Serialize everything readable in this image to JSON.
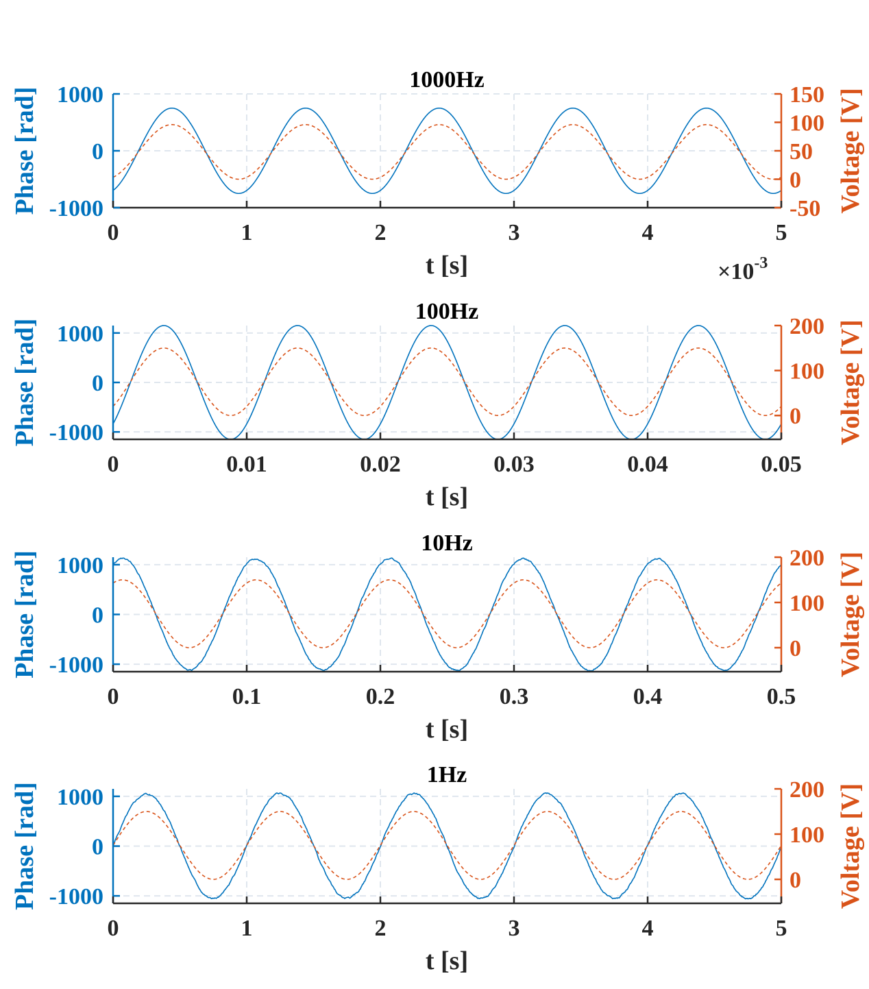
{
  "colors": {
    "phase": "#0072BD",
    "voltage": "#D95319",
    "axis": "#262626",
    "grid": "#dfe6ee"
  },
  "chart_data": [
    {
      "type": "line",
      "title": "1000Hz",
      "xlabel": "t [s]",
      "xlim": [
        0,
        0.005
      ],
      "x_exponent_label": "×10",
      "x_exponent": "-3",
      "xticks": [
        0,
        0.001,
        0.002,
        0.003,
        0.004,
        0.005
      ],
      "xticklabels": [
        "0",
        "1",
        "2",
        "3",
        "4",
        "5"
      ],
      "y_left": {
        "label": "Phase [rad]",
        "lim": [
          -1000,
          1000
        ],
        "ticks": [
          -1000,
          0,
          1000
        ],
        "ticklabels": [
          "-1000",
          "0",
          "1000"
        ],
        "grid": [
          -1000,
          0,
          1000
        ]
      },
      "y_right": {
        "label": "Voltage [V]",
        "lim": [
          -50,
          150
        ],
        "ticks": [
          -50,
          0,
          50,
          100,
          150
        ],
        "ticklabels": [
          "-50",
          "0",
          "50",
          "100",
          "150"
        ]
      },
      "series": [
        {
          "axis": "left",
          "style": "solid",
          "amplitude": 750,
          "offset": 0,
          "frequency": 1000,
          "peak_time": 0.00044,
          "noise": 0
        },
        {
          "axis": "right",
          "style": "dashed",
          "amplitude": 48,
          "offset": 48,
          "frequency": 1000,
          "peak_time": 0.00044,
          "noise": 0
        }
      ]
    },
    {
      "type": "line",
      "title": "100Hz",
      "xlabel": "t [s]",
      "xlim": [
        0,
        0.05
      ],
      "xticks": [
        0,
        0.01,
        0.02,
        0.03,
        0.04,
        0.05
      ],
      "xticklabels": [
        "0",
        "0.01",
        "0.02",
        "0.03",
        "0.04",
        "0.05"
      ],
      "y_left": {
        "label": "Phase [rad]",
        "lim": [
          -1150,
          1150
        ],
        "ticks": [
          -1000,
          0,
          1000
        ],
        "ticklabels": [
          "-1000",
          "0",
          "1000"
        ],
        "grid": [
          -1000,
          0,
          1000
        ]
      },
      "y_right": {
        "label": "Voltage [V]",
        "lim": [
          -53,
          200
        ],
        "ticks": [
          0,
          100,
          200
        ],
        "ticklabels": [
          "0",
          "100",
          "200"
        ]
      },
      "series": [
        {
          "axis": "left",
          "style": "solid",
          "amplitude": 1150,
          "offset": 0,
          "frequency": 100,
          "peak_time": 0.0038,
          "noise": 0
        },
        {
          "axis": "right",
          "style": "dashed",
          "amplitude": 75,
          "offset": 75,
          "frequency": 100,
          "peak_time": 0.0038,
          "noise": 0
        }
      ]
    },
    {
      "type": "line",
      "title": "10Hz",
      "xlabel": "t [s]",
      "xlim": [
        0,
        0.5
      ],
      "xticks": [
        0,
        0.1,
        0.2,
        0.3,
        0.4,
        0.5
      ],
      "xticklabels": [
        "0",
        "0.1",
        "0.2",
        "0.3",
        "0.4",
        "0.5"
      ],
      "y_left": {
        "label": "Phase [rad]",
        "lim": [
          -1150,
          1150
        ],
        "ticks": [
          -1000,
          0,
          1000
        ],
        "ticklabels": [
          "-1000",
          "0",
          "1000"
        ],
        "grid": [
          -1000,
          0,
          1000
        ]
      },
      "y_right": {
        "label": "Voltage [V]",
        "lim": [
          -53,
          200
        ],
        "ticks": [
          0,
          100,
          200
        ],
        "ticklabels": [
          "0",
          "100",
          "200"
        ]
      },
      "series": [
        {
          "axis": "left",
          "style": "solid",
          "amplitude": 1120,
          "offset": 0,
          "frequency": 10,
          "peak_time": 0.007,
          "noise": 22
        },
        {
          "axis": "right",
          "style": "dashed",
          "amplitude": 75,
          "offset": 75,
          "frequency": 10,
          "peak_time": 0.007,
          "noise": 0
        }
      ]
    },
    {
      "type": "line",
      "title": "1Hz",
      "xlabel": "t [s]",
      "xlim": [
        0,
        5
      ],
      "xticks": [
        0,
        1,
        2,
        3,
        4,
        5
      ],
      "xticklabels": [
        "0",
        "1",
        "2",
        "3",
        "4",
        "5"
      ],
      "y_left": {
        "label": "Phase [rad]",
        "lim": [
          -1150,
          1150
        ],
        "ticks": [
          -1000,
          0,
          1000
        ],
        "ticklabels": [
          "-1000",
          "0",
          "1000"
        ],
        "grid": [
          -1000,
          0,
          1000
        ]
      },
      "y_right": {
        "label": "Voltage [V]",
        "lim": [
          -53,
          200
        ],
        "ticks": [
          0,
          100,
          200
        ],
        "ticklabels": [
          "0",
          "100",
          "200"
        ]
      },
      "series": [
        {
          "axis": "left",
          "style": "solid",
          "amplitude": 1050,
          "offset": 0,
          "frequency": 1,
          "peak_time": 0.25,
          "noise": 25
        },
        {
          "axis": "right",
          "style": "dashed",
          "amplitude": 75,
          "offset": 75,
          "frequency": 1,
          "peak_time": 0.25,
          "noise": 0
        }
      ]
    }
  ]
}
